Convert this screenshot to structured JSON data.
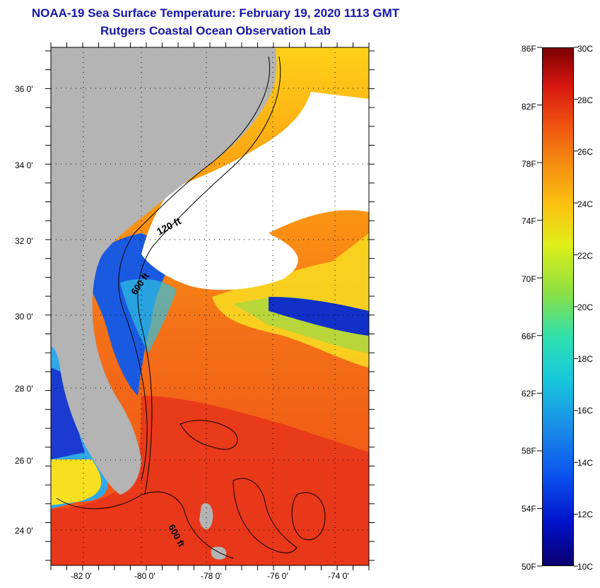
{
  "title": {
    "line1": "NOAA-19 Sea Surface Temperature:  February 19, 2020 1113 GMT",
    "line2": "Rutgers Coastal Ocean Observation Lab"
  },
  "map": {
    "latitude_labels": [
      "36 0'",
      "34 0'",
      "32 0'",
      "30 0'",
      "28 0'",
      "26 0'",
      "24 0'"
    ],
    "longitude_labels": [
      "-82 0'",
      "-80 0'",
      "-78 0'",
      "-76 0'",
      "-74 0'"
    ],
    "contour_labels": [
      "120 ft",
      "600 ft",
      "600 ft"
    ],
    "colors": {
      "land": "#b4b4b4",
      "cloud": "#ffffff",
      "warm": "#f0501a",
      "cool": "#1a4ae0",
      "warmest": "#d4140e"
    }
  },
  "colorbar": {
    "fahrenheit_labels": [
      "86F",
      "82F",
      "78F",
      "74F",
      "70F",
      "66F",
      "62F",
      "58F",
      "54F",
      "50F"
    ],
    "celsius_labels": [
      "30C",
      "28C",
      "26C",
      "24C",
      "22C",
      "20C",
      "18C",
      "16C",
      "14C",
      "12C",
      "10C"
    ]
  }
}
